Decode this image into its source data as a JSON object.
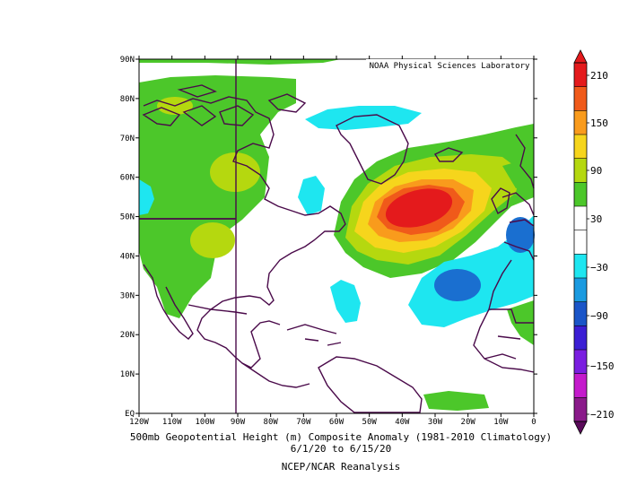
{
  "map": {
    "credit": "NOAA Physical Sciences Laboratory",
    "lat_labels": [
      "EQ",
      "10N",
      "20N",
      "30N",
      "40N",
      "50N",
      "60N",
      "70N",
      "80N",
      "90N"
    ],
    "lon_labels": [
      "120W",
      "110W",
      "100W",
      "90W",
      "80W",
      "70W",
      "60W",
      "50W",
      "40W",
      "30W",
      "20W",
      "10W",
      "0"
    ],
    "caption": {
      "line1": "500mb Geopotential Height (m) Composite Anomaly (1981-2010 Climatology)",
      "line2": "6/1/20 to 6/15/20",
      "line3": "NCEP/NCAR Reanalysis"
    }
  },
  "colorbar": {
    "labels": [
      "210",
      "150",
      "90",
      "30",
      "−30",
      "−90",
      "−150",
      "−210"
    ],
    "colors": [
      "#e41a1c",
      "#f05a1a",
      "#f99b1c",
      "#f6d51c",
      "#b5d80f",
      "#4cc72a",
      "#ffffff",
      "#ffffff",
      "#1ee6f0",
      "#1a9ae0",
      "#1a55c8",
      "#3b1ed4",
      "#7a1ee0",
      "#c41acc",
      "#8a1a8a"
    ]
  },
  "anomaly_colors": {
    "green": "#4cc72a",
    "yellow_green": "#b5d80f",
    "yellow": "#f6d51c",
    "orange": "#f99b1c",
    "orange_red": "#f05a1a",
    "red": "#e41a1c",
    "cyan": "#1ee6f0",
    "blue": "#1a6fd0",
    "coast": "#4a0a4a"
  }
}
